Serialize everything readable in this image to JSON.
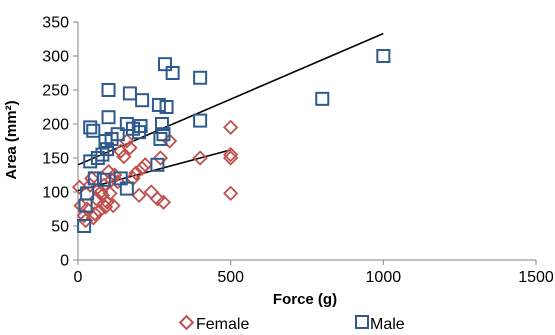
{
  "chart_data": {
    "type": "scatter",
    "xlabel": "Force (g)",
    "ylabel": "Area (mm²)",
    "xlim": [
      0,
      1500
    ],
    "ylim": [
      0,
      350
    ],
    "x_ticks": [
      "0",
      "500",
      "1000",
      "1500"
    ],
    "y_ticks": [
      "0",
      "50",
      "100",
      "150",
      "200",
      "250",
      "300",
      "350"
    ],
    "grid": false,
    "legend_position": "bottom",
    "series": [
      {
        "name": "Female",
        "marker": "diamond",
        "color": "#C0504D",
        "points": [
          [
            5,
            107
          ],
          [
            10,
            80
          ],
          [
            20,
            65
          ],
          [
            25,
            58
          ],
          [
            30,
            75
          ],
          [
            40,
            110
          ],
          [
            45,
            120
          ],
          [
            50,
            62
          ],
          [
            55,
            68
          ],
          [
            60,
            90
          ],
          [
            70,
            72
          ],
          [
            75,
            100
          ],
          [
            80,
            95
          ],
          [
            85,
            110
          ],
          [
            90,
            78
          ],
          [
            95,
            85
          ],
          [
            100,
            130
          ],
          [
            105,
            98
          ],
          [
            110,
            118
          ],
          [
            115,
            80
          ],
          [
            120,
            125
          ],
          [
            130,
            115
          ],
          [
            140,
            160
          ],
          [
            150,
            152
          ],
          [
            160,
            175
          ],
          [
            170,
            165
          ],
          [
            180,
            120
          ],
          [
            190,
            128
          ],
          [
            200,
            95
          ],
          [
            210,
            135
          ],
          [
            220,
            140
          ],
          [
            240,
            100
          ],
          [
            260,
            90
          ],
          [
            270,
            150
          ],
          [
            280,
            85
          ],
          [
            300,
            175
          ],
          [
            400,
            150
          ],
          [
            500,
            98
          ],
          [
            500,
            150
          ],
          [
            500,
            155
          ],
          [
            500,
            195
          ]
        ]
      },
      {
        "name": "Male",
        "marker": "square",
        "color": "#2E5A8E",
        "points": [
          [
            20,
            50
          ],
          [
            25,
            80
          ],
          [
            30,
            98
          ],
          [
            40,
            145
          ],
          [
            40,
            195
          ],
          [
            50,
            190
          ],
          [
            55,
            120
          ],
          [
            65,
            150
          ],
          [
            80,
            155
          ],
          [
            85,
            118
          ],
          [
            90,
            175
          ],
          [
            95,
            163
          ],
          [
            100,
            210
          ],
          [
            100,
            250
          ],
          [
            110,
            178
          ],
          [
            130,
            185
          ],
          [
            140,
            120
          ],
          [
            160,
            105
          ],
          [
            160,
            200
          ],
          [
            170,
            245
          ],
          [
            180,
            193
          ],
          [
            200,
            188
          ],
          [
            205,
            197
          ],
          [
            210,
            235
          ],
          [
            260,
            140
          ],
          [
            265,
            228
          ],
          [
            270,
            178
          ],
          [
            275,
            200
          ],
          [
            280,
            185
          ],
          [
            285,
            288
          ],
          [
            290,
            225
          ],
          [
            310,
            275
          ],
          [
            400,
            268
          ],
          [
            400,
            205
          ],
          [
            800,
            237
          ],
          [
            1000,
            300
          ]
        ]
      }
    ],
    "trendlines": [
      {
        "series": "Female",
        "x": [
          0,
          500
        ],
        "y": [
          102,
          162
        ]
      },
      {
        "series": "Male",
        "x": [
          0,
          1000
        ],
        "y": [
          140,
          333
        ]
      }
    ]
  }
}
